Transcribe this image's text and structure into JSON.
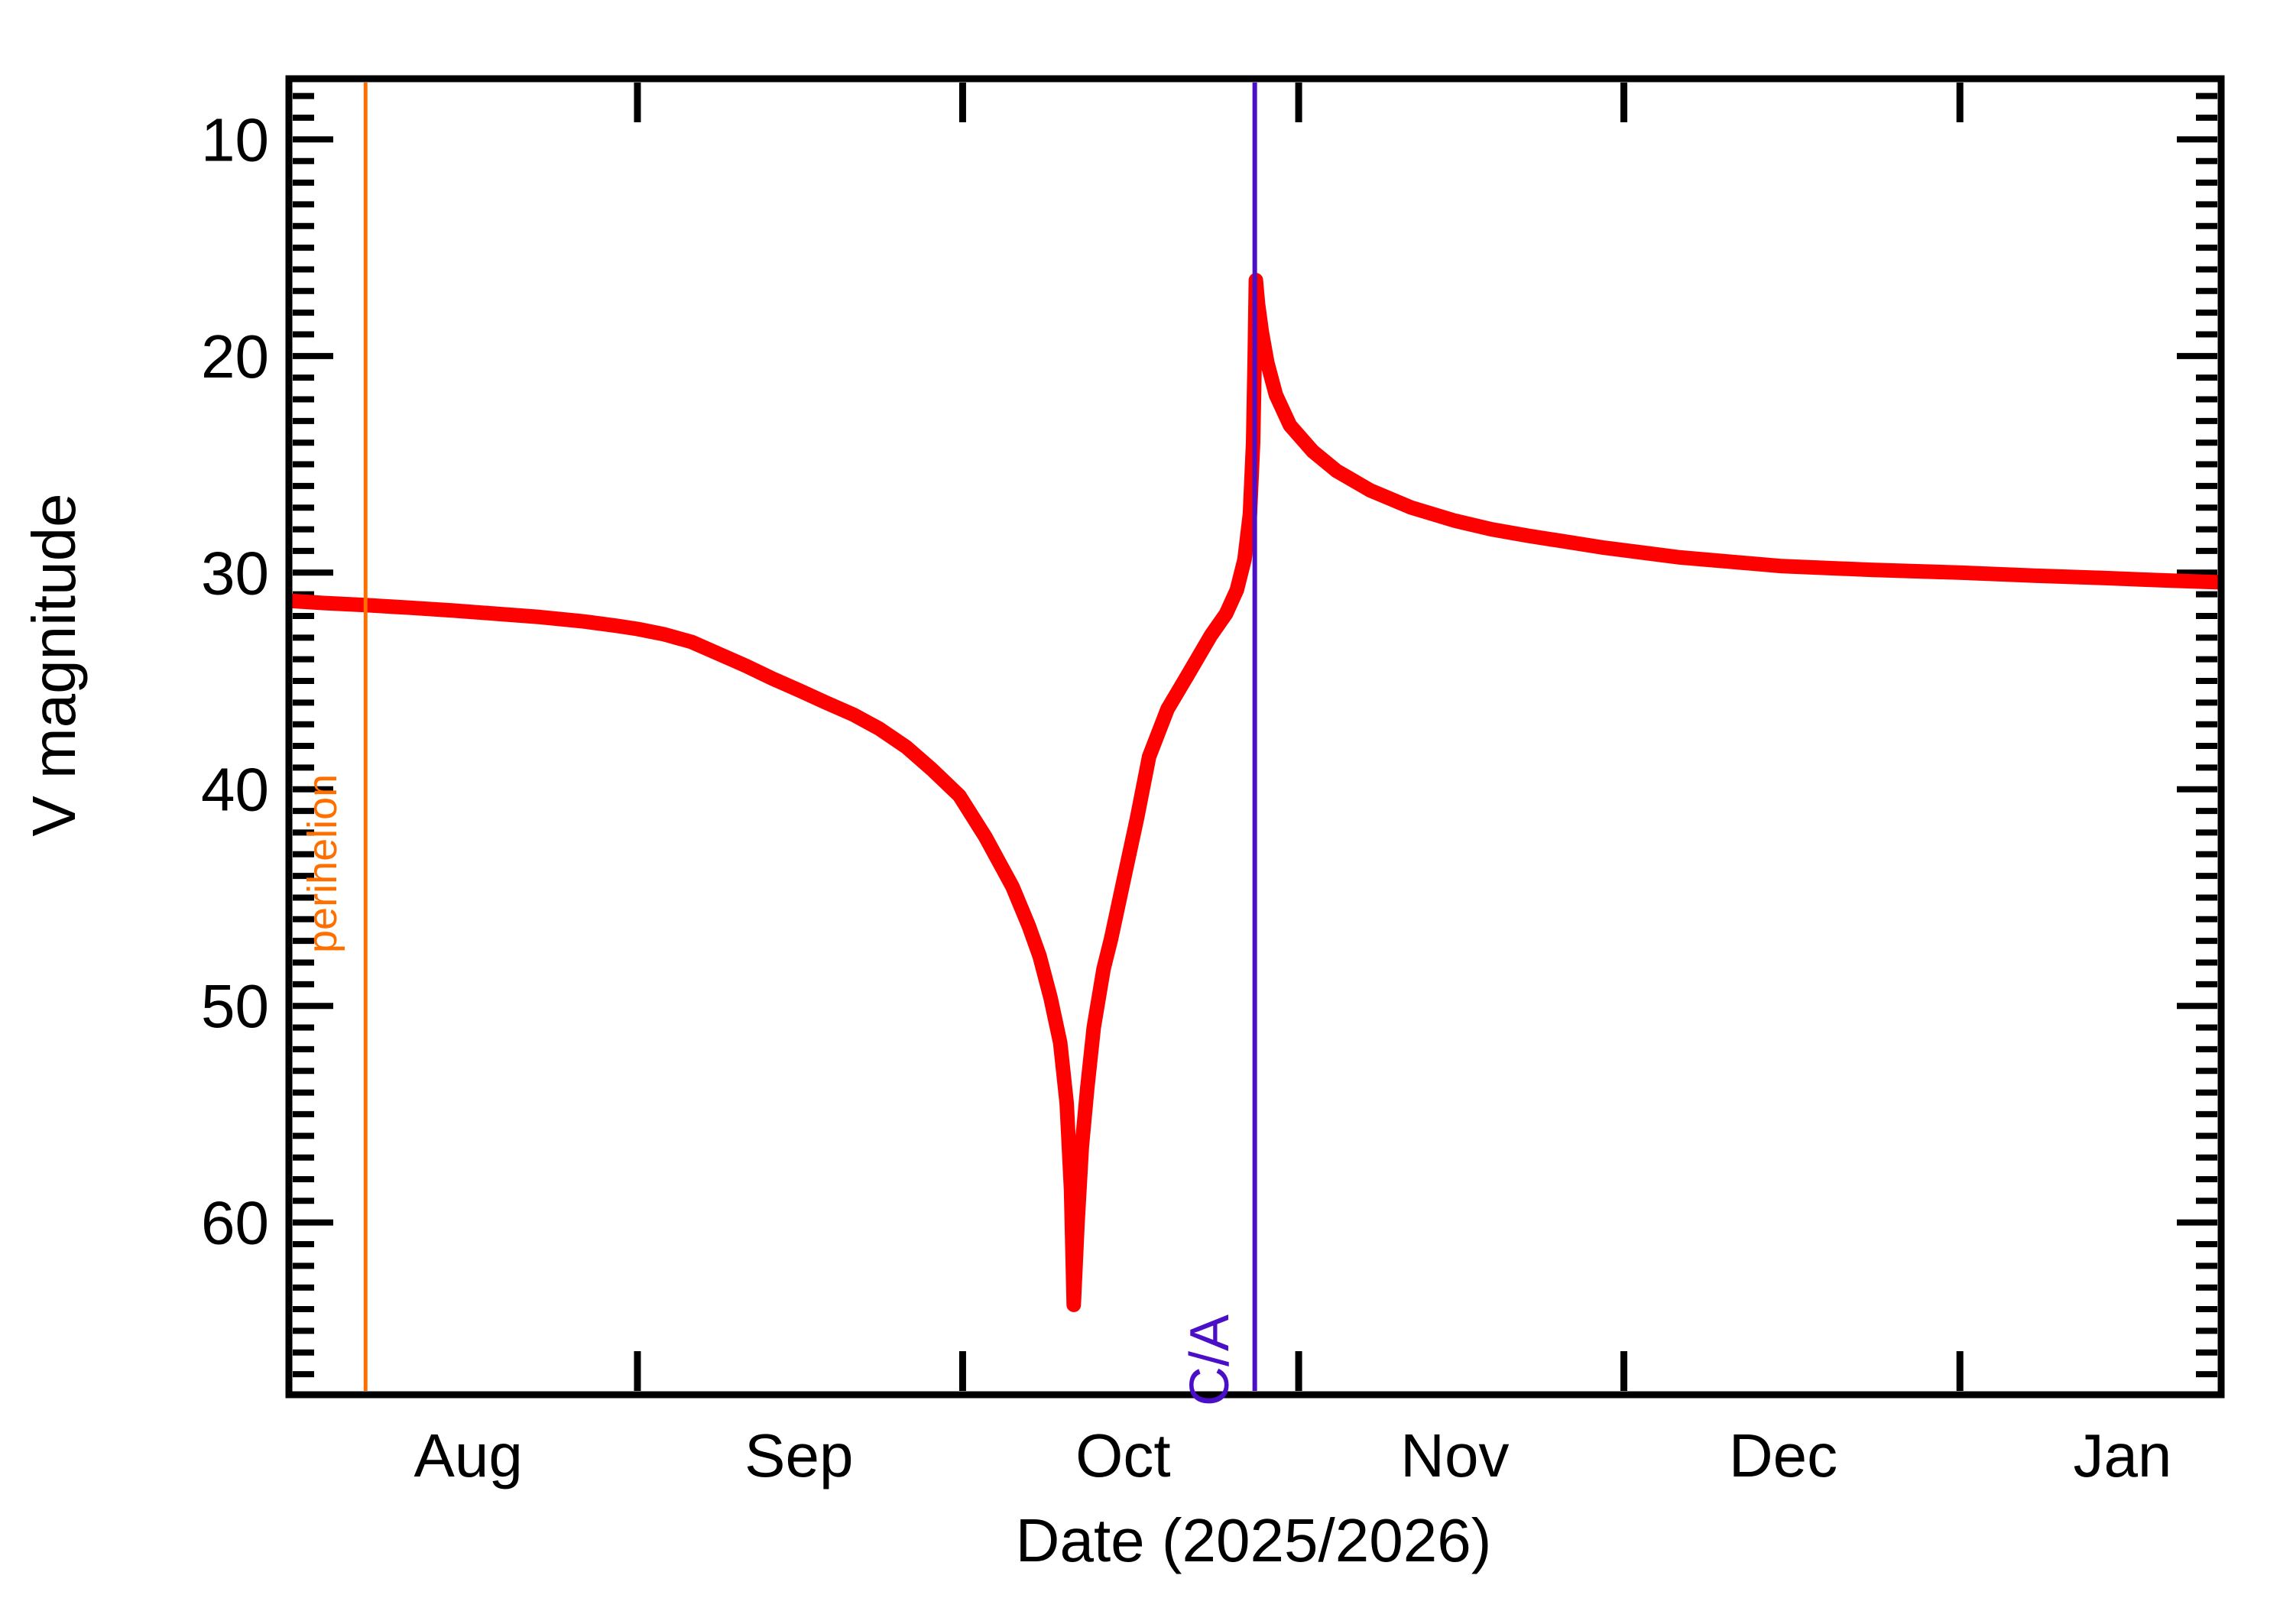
{
  "figure": {
    "background": "#ffffff",
    "kind": "comet-asteroid apparent brightness ephemeris plot"
  },
  "chart_data": {
    "type": "line",
    "title": "",
    "xlabel": "Date (2025/2026)",
    "ylabel": "V magnitude",
    "legend": "none",
    "grid": "off",
    "x_axis": {
      "unit": "days (0 = Aug 1, 2025)",
      "range_days": [
        -1.15,
        177.1
      ],
      "month_boundary_tick_days": [
        31,
        61,
        92,
        122,
        153
      ],
      "month_labels": [
        {
          "label": "Aug",
          "day": 15.4
        },
        {
          "label": "Sep",
          "day": 45.9
        },
        {
          "label": "Oct",
          "day": 75.8
        },
        {
          "label": "Nov",
          "day": 106.4
        },
        {
          "label": "Dec",
          "day": 136.7
        },
        {
          "label": "Jan",
          "day": 168.0
        }
      ]
    },
    "y_axis": {
      "range": [
        7.2,
        67.95
      ],
      "direction": "inverted (brighter up)",
      "major_ticks": [
        10,
        20,
        30,
        40,
        50,
        60
      ],
      "minor_tick_step": 1
    },
    "markers": [
      {
        "name": "perihelion",
        "label": "perihelion",
        "day": 5.92,
        "color": "#ff6f00"
      },
      {
        "name": "close-approach",
        "label": "C/A",
        "day": 87.95,
        "color": "#4b0fc8"
      }
    ],
    "series": [
      {
        "name": "V magnitude",
        "color": "#ff0000",
        "points_day_mag": [
          [
            -1.15,
            31.3
          ],
          [
            2.0,
            31.4
          ],
          [
            5.92,
            31.5
          ],
          [
            10.0,
            31.62
          ],
          [
            14.0,
            31.75
          ],
          [
            18.0,
            31.9
          ],
          [
            22.0,
            32.05
          ],
          [
            26.0,
            32.25
          ],
          [
            29.0,
            32.45
          ],
          [
            31.0,
            32.6
          ],
          [
            33.5,
            32.85
          ],
          [
            36.0,
            33.2
          ],
          [
            38.5,
            33.75
          ],
          [
            41.0,
            34.3
          ],
          [
            43.5,
            34.9
          ],
          [
            46.0,
            35.45
          ],
          [
            48.4,
            36.0
          ],
          [
            50.9,
            36.55
          ],
          [
            53.3,
            37.2
          ],
          [
            55.8,
            38.05
          ],
          [
            58.2,
            39.1
          ],
          [
            60.7,
            40.3
          ],
          [
            63.1,
            42.2
          ],
          [
            65.6,
            44.5
          ],
          [
            67.1,
            46.3
          ],
          [
            68.1,
            47.7
          ],
          [
            69.1,
            49.6
          ],
          [
            70.0,
            51.7
          ],
          [
            70.6,
            54.5
          ],
          [
            71.0,
            58.5
          ],
          [
            71.25,
            63.8
          ],
          [
            71.6,
            60.0
          ],
          [
            72.0,
            56.5
          ],
          [
            72.5,
            53.8
          ],
          [
            73.1,
            51.0
          ],
          [
            74.0,
            48.3
          ],
          [
            74.7,
            46.9
          ],
          [
            75.9,
            44.1
          ],
          [
            77.1,
            41.3
          ],
          [
            78.2,
            38.5
          ],
          [
            79.9,
            36.3
          ],
          [
            81.8,
            34.7
          ],
          [
            83.9,
            32.9
          ],
          [
            85.3,
            31.9
          ],
          [
            86.3,
            30.8
          ],
          [
            87.0,
            29.4
          ],
          [
            87.5,
            27.3
          ],
          [
            87.8,
            24.0
          ],
          [
            87.95,
            20.0
          ],
          [
            88.05,
            16.5
          ],
          [
            88.25,
            17.6
          ],
          [
            88.6,
            18.9
          ],
          [
            89.1,
            20.3
          ],
          [
            89.9,
            21.8
          ],
          [
            91.2,
            23.2
          ],
          [
            93.3,
            24.4
          ],
          [
            95.5,
            25.3
          ],
          [
            98.6,
            26.2
          ],
          [
            102.4,
            27.0
          ],
          [
            106.4,
            27.6
          ],
          [
            109.8,
            28.0
          ],
          [
            113.2,
            28.3
          ],
          [
            120.2,
            28.85
          ],
          [
            127.2,
            29.3
          ],
          [
            136.6,
            29.7
          ],
          [
            144.8,
            29.87
          ],
          [
            153.0,
            30.0
          ],
          [
            160.4,
            30.15
          ],
          [
            166.4,
            30.25
          ],
          [
            172.0,
            30.36
          ],
          [
            177.1,
            30.45
          ]
        ]
      }
    ]
  }
}
